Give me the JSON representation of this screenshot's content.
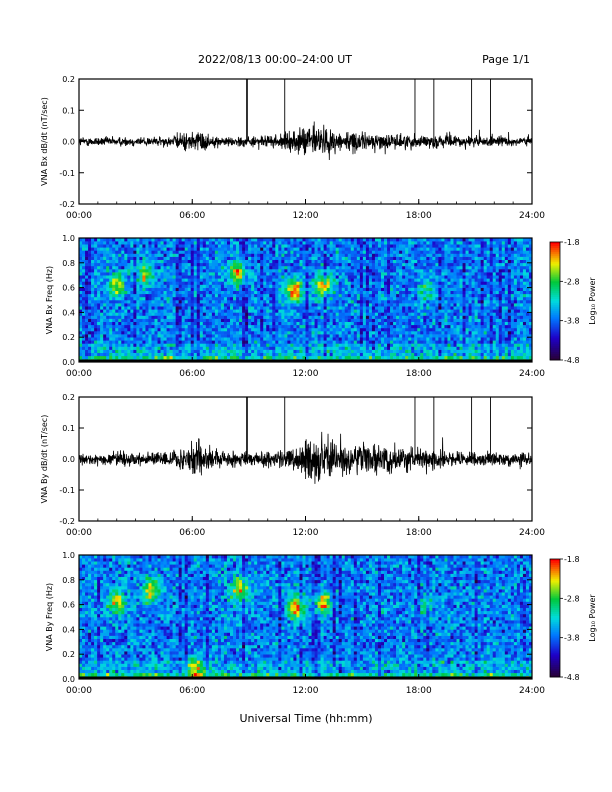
{
  "header": {
    "title": "2022/08/13  00:00–24:00 UT",
    "page": "Page 1/1"
  },
  "footer": {
    "xlabel": "Universal Time (hh:mm)"
  },
  "x_ticks": [
    "00:00",
    "06:00",
    "12:00",
    "18:00",
    "24:00"
  ],
  "chart_data": [
    {
      "type": "line",
      "ylabel": "VNA Bx dB/dt (nT/sec)",
      "xlim": [
        0,
        24
      ],
      "ylim": [
        -0.2,
        0.2
      ],
      "y_ticks": [
        "0.2",
        "0.1",
        "0.0",
        "-0.1",
        "-0.2"
      ],
      "spike_hours": [
        8.9,
        10.9,
        17.8,
        18.8,
        20.8,
        21.8
      ],
      "envelope": [
        {
          "t": 0,
          "amp": 0.012
        },
        {
          "t": 4.9,
          "amp": 0.012
        },
        {
          "t": 5.2,
          "amp": 0.02
        },
        {
          "t": 6.6,
          "amp": 0.03
        },
        {
          "t": 7.0,
          "amp": 0.012
        },
        {
          "t": 10.0,
          "amp": 0.014
        },
        {
          "t": 11.4,
          "amp": 0.025
        },
        {
          "t": 12.4,
          "amp": 0.05
        },
        {
          "t": 13.4,
          "amp": 0.03
        },
        {
          "t": 16.0,
          "amp": 0.02
        },
        {
          "t": 20.0,
          "amp": 0.015
        },
        {
          "t": 24.0,
          "amp": 0.012
        }
      ]
    },
    {
      "type": "heatmap",
      "ylabel": "VNA Bx Freq (Hz)",
      "xlim": [
        0,
        24
      ],
      "ylim": [
        0,
        1.0
      ],
      "y_ticks": [
        "1.0",
        "0.8",
        "0.6",
        "0.4",
        "0.2",
        "0.0"
      ],
      "colorbar": {
        "label": "Log₁₀ Power",
        "ticks": [
          "-1.8",
          "-2.8",
          "-3.8",
          "-4.8"
        ],
        "range": [
          -4.8,
          -1.8
        ]
      },
      "features": [
        {
          "t": 2.0,
          "f": 0.62,
          "level": 0.75
        },
        {
          "t": 3.5,
          "f": 0.7,
          "level": 0.75
        },
        {
          "t": 8.4,
          "f": 0.72,
          "level": 0.8
        },
        {
          "t": 11.4,
          "f": 0.58,
          "level": 0.85
        },
        {
          "t": 12.9,
          "f": 0.62,
          "level": 0.85
        },
        {
          "t": 18.4,
          "f": 0.58,
          "level": 0.5
        }
      ]
    },
    {
      "type": "line",
      "ylabel": "VNA By dB/dt (nT/sec)",
      "xlim": [
        0,
        24
      ],
      "ylim": [
        -0.2,
        0.2
      ],
      "y_ticks": [
        "0.2",
        "0.1",
        "0.0",
        "-0.1",
        "-0.2"
      ],
      "spike_hours": [
        8.9,
        10.9,
        17.8,
        18.8,
        20.8,
        21.8
      ],
      "envelope": [
        {
          "t": 0,
          "amp": 0.015
        },
        {
          "t": 5.0,
          "amp": 0.02
        },
        {
          "t": 6.4,
          "amp": 0.06
        },
        {
          "t": 7.2,
          "amp": 0.02
        },
        {
          "t": 10.0,
          "amp": 0.02
        },
        {
          "t": 11.6,
          "amp": 0.03
        },
        {
          "t": 12.4,
          "amp": 0.07
        },
        {
          "t": 13.5,
          "amp": 0.04
        },
        {
          "t": 16.0,
          "amp": 0.035
        },
        {
          "t": 20.0,
          "amp": 0.02
        },
        {
          "t": 24.0,
          "amp": 0.015
        }
      ]
    },
    {
      "type": "heatmap",
      "ylabel": "VNA By Freq (Hz)",
      "xlim": [
        0,
        24
      ],
      "ylim": [
        0,
        1.0
      ],
      "y_ticks": [
        "1.0",
        "0.8",
        "0.6",
        "0.4",
        "0.2",
        "0.0"
      ],
      "colorbar": {
        "label": "Log₁₀ Power",
        "ticks": [
          "-1.8",
          "-2.8",
          "-3.8",
          "-4.8"
        ],
        "range": [
          -4.8,
          -1.8
        ]
      },
      "features": [
        {
          "t": 2.0,
          "f": 0.62,
          "level": 0.75
        },
        {
          "t": 3.8,
          "f": 0.72,
          "level": 0.75
        },
        {
          "t": 8.5,
          "f": 0.72,
          "level": 0.8
        },
        {
          "t": 11.5,
          "f": 0.58,
          "level": 0.85
        },
        {
          "t": 12.9,
          "f": 0.62,
          "level": 0.85
        },
        {
          "t": 18.4,
          "f": 0.58,
          "level": 0.5
        },
        {
          "t": 6.2,
          "f": 0.08,
          "level": 0.7
        }
      ]
    }
  ]
}
